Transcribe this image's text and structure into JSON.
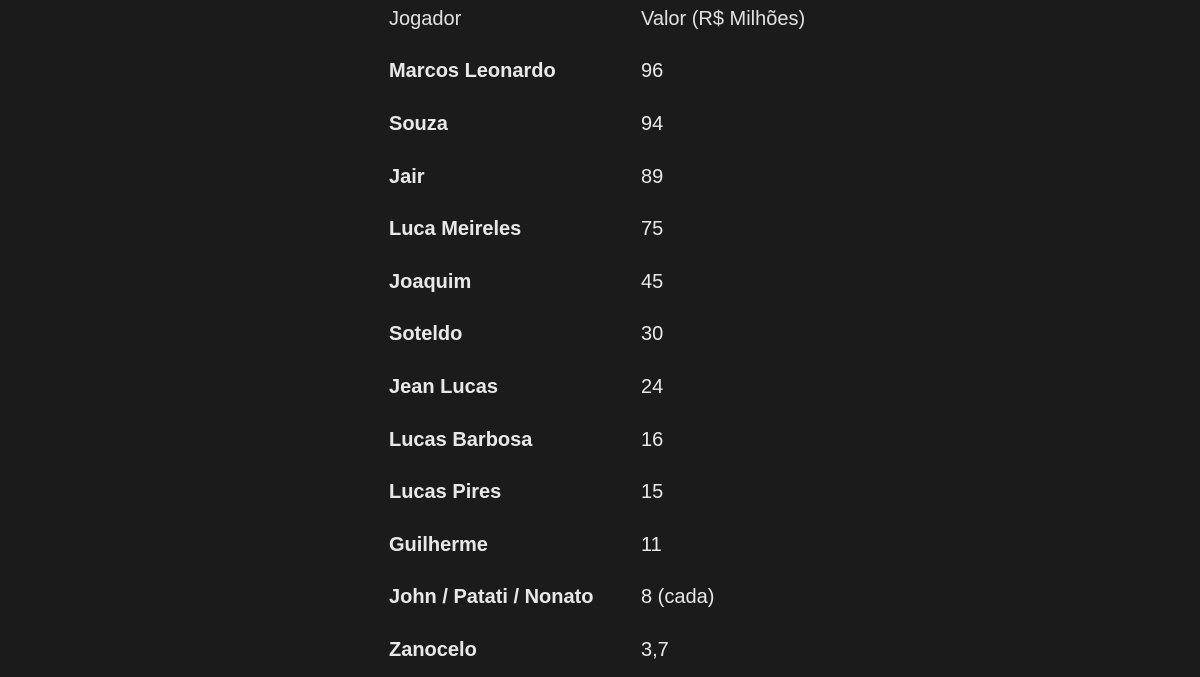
{
  "table": {
    "headers": [
      "Jogador",
      "Valor (R$ Milhões)"
    ],
    "rows": [
      {
        "player": "Marcos Leonardo",
        "value": "96"
      },
      {
        "player": "Souza",
        "value": "94"
      },
      {
        "player": "Jair",
        "value": "89"
      },
      {
        "player": "Luca Meireles",
        "value": "75"
      },
      {
        "player": "Joaquim",
        "value": "45"
      },
      {
        "player": "Soteldo",
        "value": "30"
      },
      {
        "player": "Jean Lucas",
        "value": "24"
      },
      {
        "player": "Lucas Barbosa",
        "value": "16"
      },
      {
        "player": "Lucas Pires",
        "value": "15"
      },
      {
        "player": "Guilherme",
        "value": "11"
      },
      {
        "player": "John / Patati / Nonato",
        "value": "8 (cada)"
      },
      {
        "player": "Zanocelo",
        "value": "3,7"
      }
    ]
  }
}
